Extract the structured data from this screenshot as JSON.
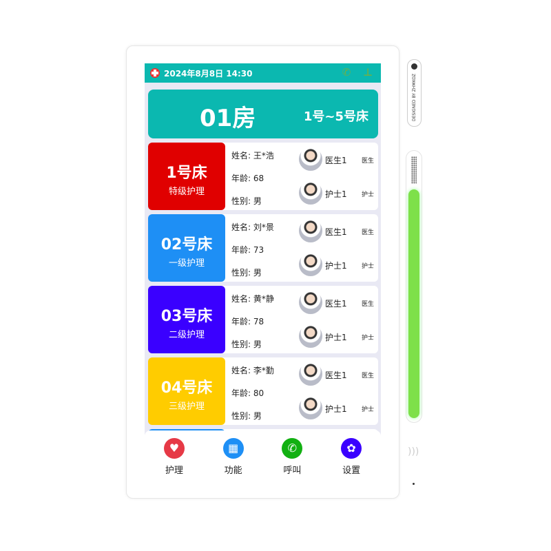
{
  "status_bar": {
    "datetime": "2024年8月8日 14:30",
    "icons": [
      "hospital-cross-icon",
      "phone-icon",
      "network-icon"
    ]
  },
  "room": {
    "number": "01房",
    "range": "1号~5号床"
  },
  "beds": [
    {
      "bed": "1号床",
      "level": "特级护理",
      "color": "#e00000",
      "name_label": "姓名:",
      "name": "王*浩",
      "age_label": "年龄:",
      "age": "68",
      "sex_label": "性别:",
      "sex": "男",
      "doctor": "医生1",
      "doctor_tag": "医生",
      "nurse": "护士1",
      "nurse_tag": "护士"
    },
    {
      "bed": "02号床",
      "level": "一级护理",
      "color": "#1e8ff5",
      "name_label": "姓名:",
      "name": "刘*景",
      "age_label": "年龄:",
      "age": "73",
      "sex_label": "性别:",
      "sex": "男",
      "doctor": "医生1",
      "doctor_tag": "医生",
      "nurse": "护士1",
      "nurse_tag": "护士"
    },
    {
      "bed": "03号床",
      "level": "二级护理",
      "color": "#3a00ff",
      "name_label": "姓名:",
      "name": "黄*静",
      "age_label": "年龄:",
      "age": "78",
      "sex_label": "性别:",
      "sex": "男",
      "doctor": "医生1",
      "doctor_tag": "医生",
      "nurse": "护士1",
      "nurse_tag": "护士"
    },
    {
      "bed": "04号床",
      "level": "三级护理",
      "color": "#ffcc00",
      "name_label": "姓名:",
      "name": "李*勤",
      "age_label": "年龄:",
      "age": "80",
      "sex_label": "性别:",
      "sex": "男",
      "doctor": "医生1",
      "doctor_tag": "医生",
      "nurse": "护士1",
      "nurse_tag": "护士"
    }
  ],
  "nav": [
    {
      "label": "护理",
      "icon": "heart-icon",
      "color": "#e63946"
    },
    {
      "label": "功能",
      "icon": "apps-icon",
      "color": "#1e8ff5"
    },
    {
      "label": "呼叫",
      "icon": "phone-icon",
      "color": "#12b012"
    },
    {
      "label": "设置",
      "icon": "gear-icon",
      "color": "#3a00ff"
    }
  ],
  "device": {
    "side_text": "DESIGNED BY ZHMKOZ"
  }
}
